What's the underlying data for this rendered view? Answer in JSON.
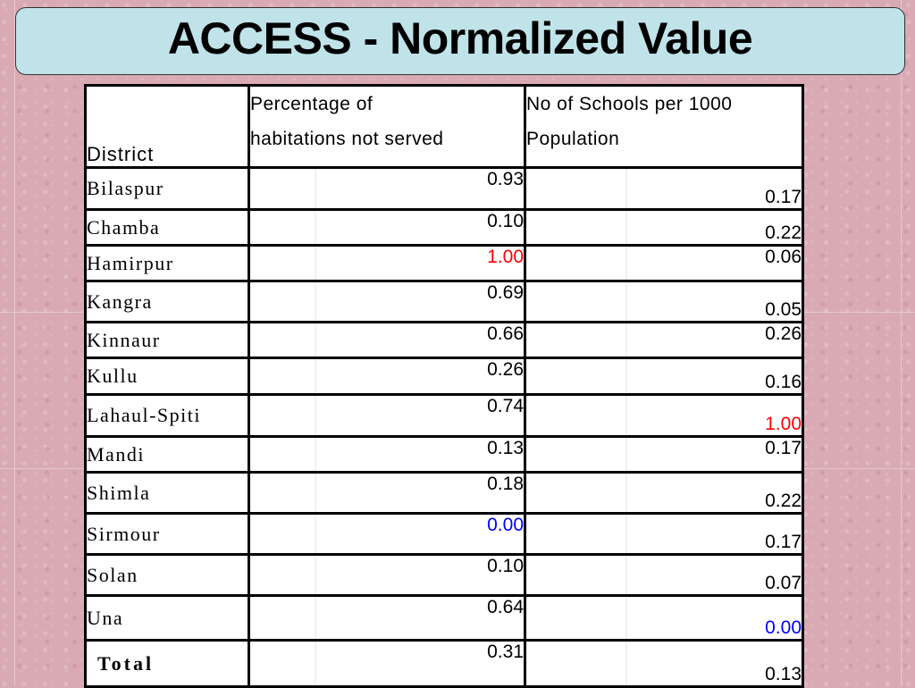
{
  "title": "ACCESS - Normalized Value",
  "headers": {
    "district": "District",
    "col1_line1": "Percentage of",
    "col1_line2": "habitations not served",
    "col2_line1": "No of Schools per 1000",
    "col2_line2": "Population"
  },
  "rows": [
    {
      "district": "Bilaspur",
      "pct_not_served": "0.93",
      "schools_per_1000": "0.17"
    },
    {
      "district": "Chamba",
      "pct_not_served": "0.10",
      "schools_per_1000": "0.22"
    },
    {
      "district": "Hamirpur",
      "pct_not_served": "1.00",
      "schools_per_1000": "0.06"
    },
    {
      "district": "Kangra",
      "pct_not_served": "0.69",
      "schools_per_1000": "0.05"
    },
    {
      "district": "Kinnaur",
      "pct_not_served": "0.66",
      "schools_per_1000": "0.26"
    },
    {
      "district": "Kullu",
      "pct_not_served": "0.26",
      "schools_per_1000": "0.16"
    },
    {
      "district": "Lahaul-Spiti",
      "pct_not_served": "0.74",
      "schools_per_1000": "1.00"
    },
    {
      "district": "Mandi",
      "pct_not_served": "0.13",
      "schools_per_1000": "0.17"
    },
    {
      "district": "Shimla",
      "pct_not_served": "0.18",
      "schools_per_1000": "0.22"
    },
    {
      "district": "Sirmour",
      "pct_not_served": "0.00",
      "schools_per_1000": "0.17"
    },
    {
      "district": "Solan",
      "pct_not_served": "0.10",
      "schools_per_1000": "0.07"
    },
    {
      "district": "Una",
      "pct_not_served": "0.64",
      "schools_per_1000": "0.00"
    },
    {
      "district": "Total",
      "pct_not_served": "0.31",
      "schools_per_1000": "0.13"
    }
  ],
  "highlight_colors": {
    "max_value": "#ff0000",
    "min_value": "#0000ff"
  }
}
